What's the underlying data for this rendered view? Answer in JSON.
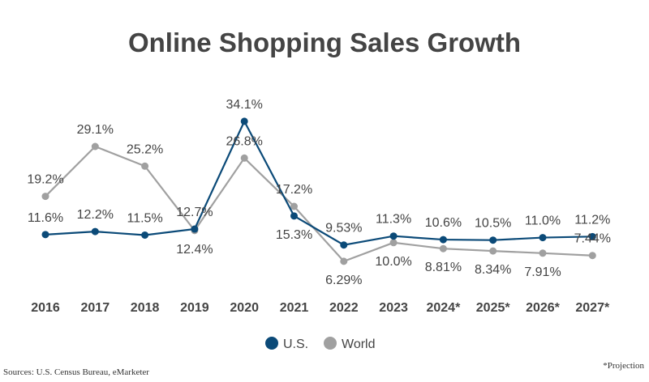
{
  "chart_data": {
    "type": "line",
    "title": "Online Shopping Sales Growth",
    "categories": [
      "2016",
      "2017",
      "2018",
      "2019",
      "2020",
      "2021",
      "2022",
      "2023",
      "2024*",
      "2025*",
      "2026*",
      "2027*"
    ],
    "series": [
      {
        "name": "U.S.",
        "color": "#0b4a78",
        "values": [
          11.6,
          12.2,
          11.5,
          12.7,
          34.1,
          15.3,
          9.53,
          11.3,
          10.6,
          10.5,
          11.0,
          11.2
        ],
        "labels": [
          "11.6%",
          "12.2%",
          "11.5%",
          "12.7%",
          "34.1%",
          "15.3%",
          "9.53%",
          "11.3%",
          "10.6%",
          "10.5%",
          "11.0%",
          "11.2%"
        ]
      },
      {
        "name": "World",
        "color": "#a0a0a0",
        "values": [
          19.2,
          29.1,
          25.2,
          12.4,
          26.8,
          17.2,
          6.29,
          10.0,
          8.81,
          8.34,
          7.91,
          7.44
        ],
        "labels": [
          "19.2%",
          "29.1%",
          "25.2%",
          "12.4%",
          "26.8%",
          "17.2%",
          "6.29%",
          "10.0%",
          "8.81%",
          "8.34%",
          "7.91%",
          "7.44%"
        ]
      }
    ],
    "ylabel": "",
    "xlabel": "",
    "grid": false,
    "legend": "bottom-center"
  },
  "source": "Sources: U.S. Census Bureau, eMarketer",
  "note": "*Projection"
}
